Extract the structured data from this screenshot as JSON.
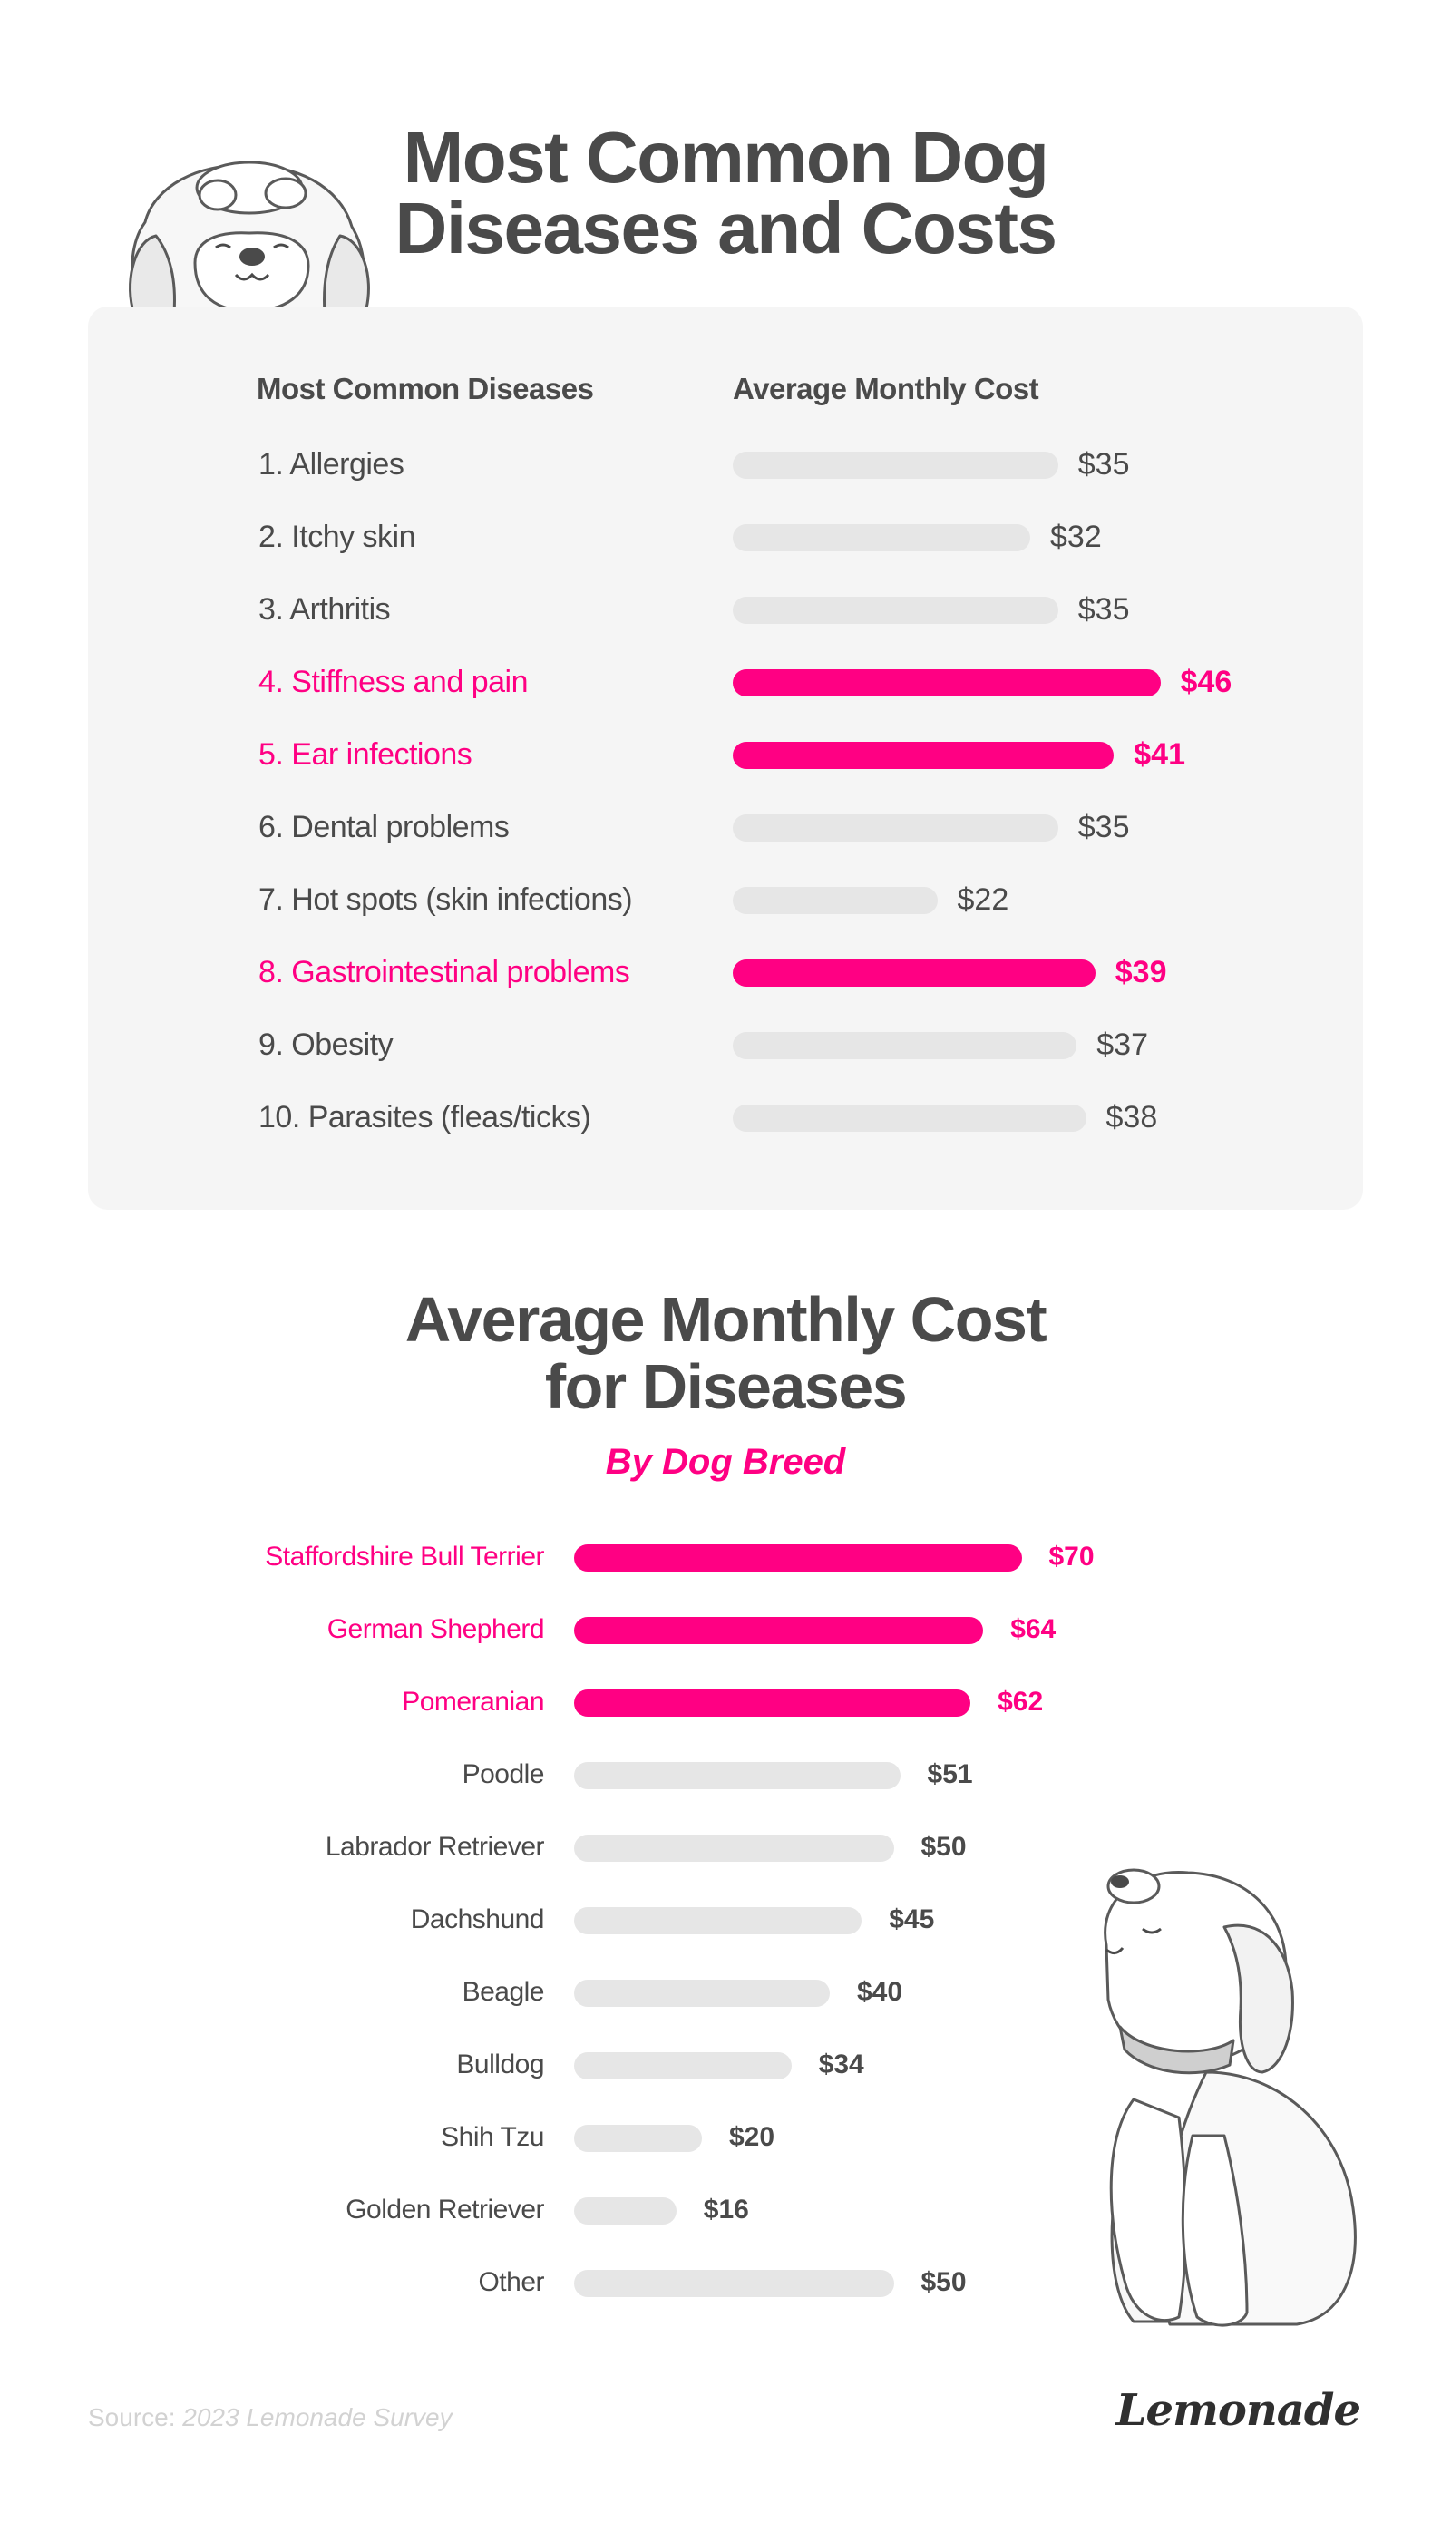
{
  "header": {
    "title_line1": "Most Common Dog",
    "title_line2": "Diseases and Costs"
  },
  "table": {
    "col_disease": "Most Common Diseases",
    "col_cost": "Average Monthly Cost"
  },
  "section2": {
    "title_line1": "Average Monthly Cost",
    "title_line2": "for Diseases",
    "subtitle": "By Dog Breed"
  },
  "footer": {
    "source_prefix": "Source:",
    "source_text": "2023 Lemonade Survey",
    "logo": "Lemonade"
  },
  "colors": {
    "highlight": "#ff0083",
    "bar_default": "#e6e6e6",
    "panel": "#f5f5f5",
    "text": "#4a4a4a"
  },
  "illustrations": [
    "dog-peeking-icon",
    "dog-sitting-icon"
  ],
  "chart_data": [
    {
      "type": "bar",
      "orientation": "horizontal",
      "title": "Most Common Dog Diseases and Costs",
      "xlabel": "Average Monthly Cost",
      "ylabel": "Most Common Diseases",
      "categories": [
        "1. Allergies",
        "2. Itchy skin",
        "3. Arthritis",
        "4. Stiffness and pain",
        "5. Ear infections",
        "6. Dental problems",
        "7. Hot spots (skin infections)",
        "8. Gastrointestinal problems",
        "9. Obesity",
        "10. Parasites (fleas/ticks)"
      ],
      "values": [
        35,
        32,
        35,
        46,
        41,
        35,
        22,
        39,
        37,
        38
      ],
      "value_labels": [
        "$35",
        "$32",
        "$35",
        "$46",
        "$41",
        "$35",
        "$22",
        "$39",
        "$37",
        "$38"
      ],
      "highlighted": [
        false,
        false,
        false,
        true,
        true,
        false,
        false,
        true,
        false,
        false
      ],
      "grid": false
    },
    {
      "type": "bar",
      "orientation": "horizontal",
      "title": "Average Monthly Cost for Diseases",
      "subtitle": "By Dog Breed",
      "categories": [
        "Staffordshire Bull Terrier",
        "German Shepherd",
        "Pomeranian",
        "Poodle",
        "Labrador Retriever",
        "Dachshund",
        "Beagle",
        "Bulldog",
        "Shih Tzu",
        "Golden Retriever",
        "Other"
      ],
      "values": [
        70,
        64,
        62,
        51,
        50,
        45,
        40,
        34,
        20,
        16,
        50
      ],
      "value_labels": [
        "$70",
        "$64",
        "$62",
        "$51",
        "$50",
        "$45",
        "$40",
        "$34",
        "$20",
        "$16",
        "$50"
      ],
      "highlighted": [
        true,
        true,
        true,
        false,
        false,
        false,
        false,
        false,
        false,
        false,
        false
      ],
      "grid": false
    }
  ]
}
